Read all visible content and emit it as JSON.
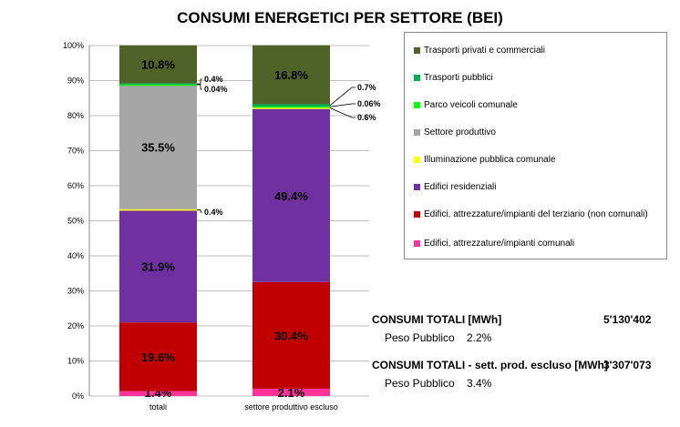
{
  "chart_data": {
    "type": "bar",
    "stacked": true,
    "title": "CONSUMI ENERGETICI PER SETTORE (BEI)",
    "categories": [
      "totali",
      "settore produttivo escluso"
    ],
    "yticks": [
      "0%",
      "10%",
      "20%",
      "30%",
      "40%",
      "50%",
      "60%",
      "70%",
      "80%",
      "90%",
      "100%"
    ],
    "ylim": [
      0,
      100
    ],
    "legend_position": "right",
    "series": [
      {
        "name": "Edifici, attrezzature/impianti comunali",
        "color": "#ff3399",
        "values": [
          1.4,
          2.1
        ],
        "labels": [
          "1.4%",
          "2.1%"
        ]
      },
      {
        "name": "Edifici, attrezzature/impianti del terziario (non comunali)",
        "color": "#c00000",
        "values": [
          19.6,
          30.4
        ],
        "labels": [
          "19.6%",
          "30.4%"
        ]
      },
      {
        "name": "Edifici residenziali",
        "color": "#7030a0",
        "values": [
          31.9,
          49.4
        ],
        "labels": [
          "31.9%",
          "49.4%"
        ]
      },
      {
        "name": "Illuminazione pubblica comunale",
        "color": "#ffff00",
        "values": [
          0.4,
          0.6
        ],
        "labels": [
          "0.4%",
          "0.6%"
        ]
      },
      {
        "name": "Settore produttivo",
        "color": "#a6a6a6",
        "values": [
          35.5,
          0
        ],
        "labels": [
          "35.5%",
          ""
        ]
      },
      {
        "name": "Parco veicoli comunale",
        "color": "#00ff00",
        "values": [
          0.04,
          0.06
        ],
        "labels": [
          "0.04%",
          "0.06%"
        ]
      },
      {
        "name": "Trasporti pubblici",
        "color": "#00b050",
        "values": [
          0.4,
          0.7
        ],
        "labels": [
          "0.4%",
          "0.7%"
        ]
      },
      {
        "name": "Trasporti privati e commerciali",
        "color": "#4f6228",
        "values": [
          10.8,
          16.8
        ],
        "labels": [
          "10.8%",
          "16.8%"
        ]
      }
    ]
  },
  "summary": {
    "row1_label": "CONSUMI TOTALI [MWh]",
    "row1_value": "5'130'402",
    "row1_sub_label": "Peso Pubblico",
    "row1_sub_value": "2.2%",
    "row2_label": "CONSUMI TOTALI - sett. prod. escluso [MWh]",
    "row2_value": "3'307'073",
    "row2_sub_label": "Peso Pubblico",
    "row2_sub_value": "3.4%"
  }
}
